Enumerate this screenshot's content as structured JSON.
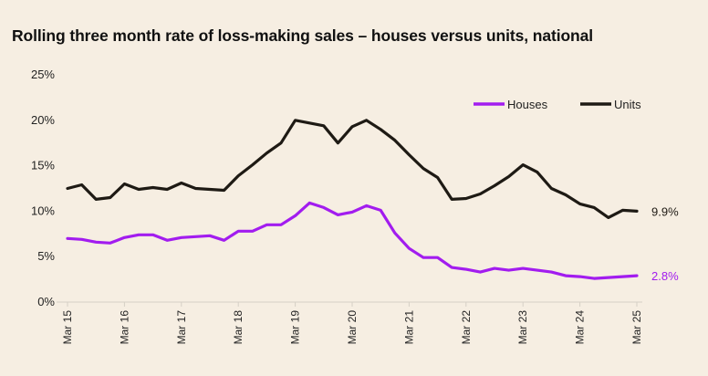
{
  "chart_data": {
    "type": "line",
    "title": "Rolling three month rate of loss-making sales  – houses versus units, national",
    "xlabel": "",
    "ylabel": "",
    "ylim": [
      0,
      25
    ],
    "yticks": [
      "0%",
      "5%",
      "10%",
      "15%",
      "20%",
      "25%"
    ],
    "xtick_labels": [
      "Mar 15",
      "Mar 16",
      "Mar 17",
      "Mar 18",
      "Mar 19",
      "Mar 20",
      "Mar 21",
      "Mar 22",
      "Mar 23",
      "Mar 24",
      "Mar 25"
    ],
    "x": [
      "Mar 15",
      "Jun 15",
      "Sep 15",
      "Dec 15",
      "Mar 16",
      "Jun 16",
      "Sep 16",
      "Dec 16",
      "Mar 17",
      "Jun 17",
      "Sep 17",
      "Dec 17",
      "Mar 18",
      "Jun 18",
      "Sep 18",
      "Dec 18",
      "Mar 19",
      "Jun 19",
      "Sep 19",
      "Dec 19",
      "Mar 20",
      "Jun 20",
      "Sep 20",
      "Dec 20",
      "Mar 21",
      "Jun 21",
      "Sep 21",
      "Dec 21",
      "Mar 22",
      "Jun 22",
      "Sep 22",
      "Dec 22",
      "Mar 23",
      "Jun 23",
      "Sep 23",
      "Dec 23",
      "Mar 24",
      "Jun 24",
      "Sep 24",
      "Dec 24",
      "Mar 25"
    ],
    "grid": false,
    "legend_position": "top-right",
    "series": [
      {
        "name": "Houses",
        "color": "#a21cef",
        "end_label": "2.8%",
        "values": [
          6.9,
          6.8,
          6.5,
          6.4,
          7.0,
          7.3,
          7.3,
          6.7,
          7.0,
          7.1,
          7.2,
          6.7,
          7.7,
          7.7,
          8.4,
          8.4,
          9.4,
          10.8,
          10.3,
          9.5,
          9.8,
          10.5,
          10.0,
          7.5,
          5.8,
          4.8,
          4.8,
          3.7,
          3.5,
          3.2,
          3.6,
          3.4,
          3.6,
          3.4,
          3.2,
          2.8,
          2.7,
          2.5,
          2.6,
          2.7,
          2.8
        ]
      },
      {
        "name": "Units",
        "color": "#1e1a14",
        "end_label": "9.9%",
        "values": [
          12.4,
          12.8,
          11.2,
          11.4,
          12.9,
          12.3,
          12.5,
          12.3,
          13.0,
          12.4,
          12.3,
          12.2,
          13.8,
          15.0,
          16.3,
          17.4,
          19.9,
          19.6,
          19.3,
          17.4,
          19.2,
          19.9,
          18.9,
          17.7,
          16.1,
          14.6,
          13.6,
          11.2,
          11.3,
          11.8,
          12.7,
          13.7,
          15.0,
          14.2,
          12.4,
          11.7,
          10.7,
          10.3,
          9.2,
          10.0,
          9.9
        ]
      }
    ]
  }
}
